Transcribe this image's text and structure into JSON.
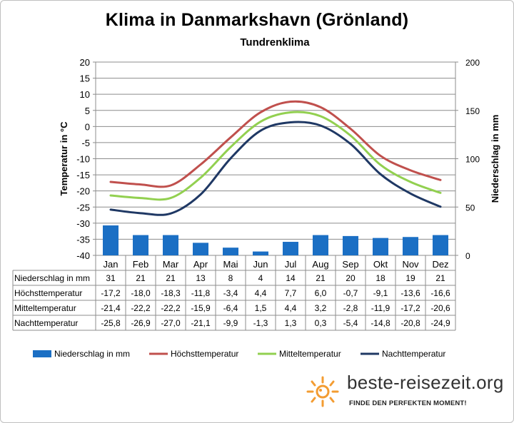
{
  "chart_data": {
    "type": "combo",
    "title": "Klima in Danmarkshavn (Grönland)",
    "subtitle": "Tundrenklima",
    "categories": [
      "Jan",
      "Feb",
      "Mar",
      "Apr",
      "Mai",
      "Jun",
      "Jul",
      "Aug",
      "Sep",
      "Okt",
      "Nov",
      "Dez"
    ],
    "y_left": {
      "label": "Temperatur in °C",
      "range": [
        -40,
        20
      ],
      "ticks": [
        "20",
        "15",
        "10",
        "5",
        "0",
        "-5",
        "-10",
        "-15",
        "-20",
        "-25",
        "-30",
        "-35",
        "-40"
      ]
    },
    "y_right": {
      "label": "Niederschlag in mm",
      "range": [
        0,
        200
      ],
      "ticks": [
        "200",
        "150",
        "100",
        "50",
        "0"
      ]
    },
    "grid": true,
    "legend_position": "bottom",
    "series": [
      {
        "name": "Niederschlag in mm",
        "type": "bar",
        "axis": "right",
        "color": "#1b6fc4",
        "values": [
          31,
          21,
          21,
          13,
          8,
          4,
          14,
          21,
          20,
          18,
          19,
          21
        ],
        "labels": [
          "31",
          "21",
          "21",
          "13",
          "8",
          "4",
          "14",
          "21",
          "20",
          "18",
          "19",
          "21"
        ]
      },
      {
        "name": "Höchsttemperatur",
        "type": "line",
        "axis": "left",
        "color": "#c0504d",
        "values": [
          -17.2,
          -18.0,
          -18.3,
          -11.8,
          -3.4,
          4.4,
          7.7,
          6.0,
          -0.7,
          -9.1,
          -13.6,
          -16.6
        ],
        "labels": [
          "-17,2",
          "-18,0",
          "-18,3",
          "-11,8",
          "-3,4",
          "4,4",
          "7,7",
          "6,0",
          "-0,7",
          "-9,1",
          "-13,6",
          "-16,6"
        ]
      },
      {
        "name": "Mitteltemperatur",
        "type": "line",
        "axis": "left",
        "color": "#92d050",
        "values": [
          -21.4,
          -22.2,
          -22.2,
          -15.9,
          -6.4,
          1.5,
          4.4,
          3.2,
          -2.8,
          -11.9,
          -17.2,
          -20.6
        ],
        "labels": [
          "-21,4",
          "-22,2",
          "-22,2",
          "-15,9",
          "-6,4",
          "1,5",
          "4,4",
          "3,2",
          "-2,8",
          "-11,9",
          "-17,2",
          "-20,6"
        ]
      },
      {
        "name": "Nachttemperatur",
        "type": "line",
        "axis": "left",
        "color": "#1f3864",
        "values": [
          -25.8,
          -26.9,
          -27.0,
          -21.1,
          -9.9,
          -1.3,
          1.3,
          0.3,
          -5.4,
          -14.8,
          -20.8,
          -24.9
        ],
        "labels": [
          "-25,8",
          "-26,9",
          "-27,0",
          "-21,1",
          "-9,9",
          "-1,3",
          "1,3",
          "0,3",
          "-5,4",
          "-14,8",
          "-20,8",
          "-24,9"
        ]
      }
    ]
  },
  "brand": {
    "name": "beste-reisezeit.org",
    "slogan": "FINDE DEN PERFEKTEN MOMENT!"
  }
}
